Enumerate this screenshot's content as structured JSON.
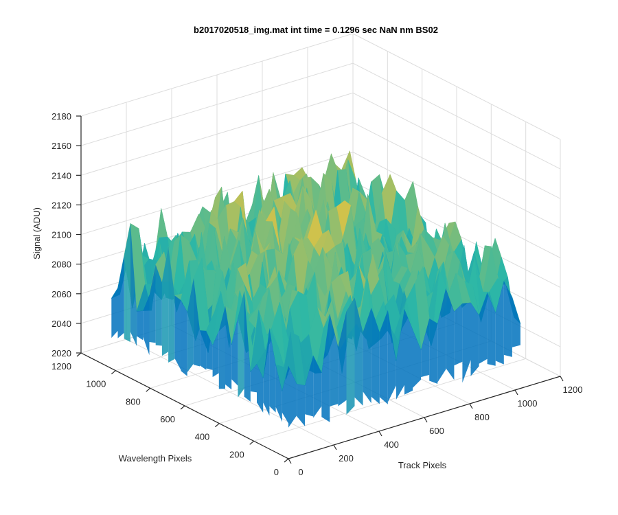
{
  "chart_data": {
    "type": "surface",
    "title": "b2017020518_img.mat int time = 0.1296 sec  NaN nm BS02",
    "xlabel": "Track Pixels",
    "ylabel": "Wavelength Pixels",
    "zlabel": "Signal (ADU)",
    "xlim": [
      0,
      1200
    ],
    "ylim": [
      0,
      1200
    ],
    "zlim": [
      2020,
      2180
    ],
    "x_ticks": [
      "0",
      "200",
      "400",
      "600",
      "800",
      "1000",
      "1200"
    ],
    "y_ticks": [
      "0",
      "200",
      "400",
      "600",
      "800",
      "1000",
      "1200"
    ],
    "z_ticks": [
      "2020",
      "2040",
      "2060",
      "2080",
      "2100",
      "2120",
      "2140",
      "2160",
      "2180"
    ],
    "x_extent": [
      0,
      1024
    ],
    "y_extent": [
      0,
      1024
    ],
    "mean_signal": 2090,
    "signal_range": [
      2040,
      2170
    ],
    "grid": true,
    "colormap": "parula",
    "colors": {
      "low": "#0072bd",
      "mid": "#2db8a6",
      "high": "#e6c33f"
    }
  }
}
